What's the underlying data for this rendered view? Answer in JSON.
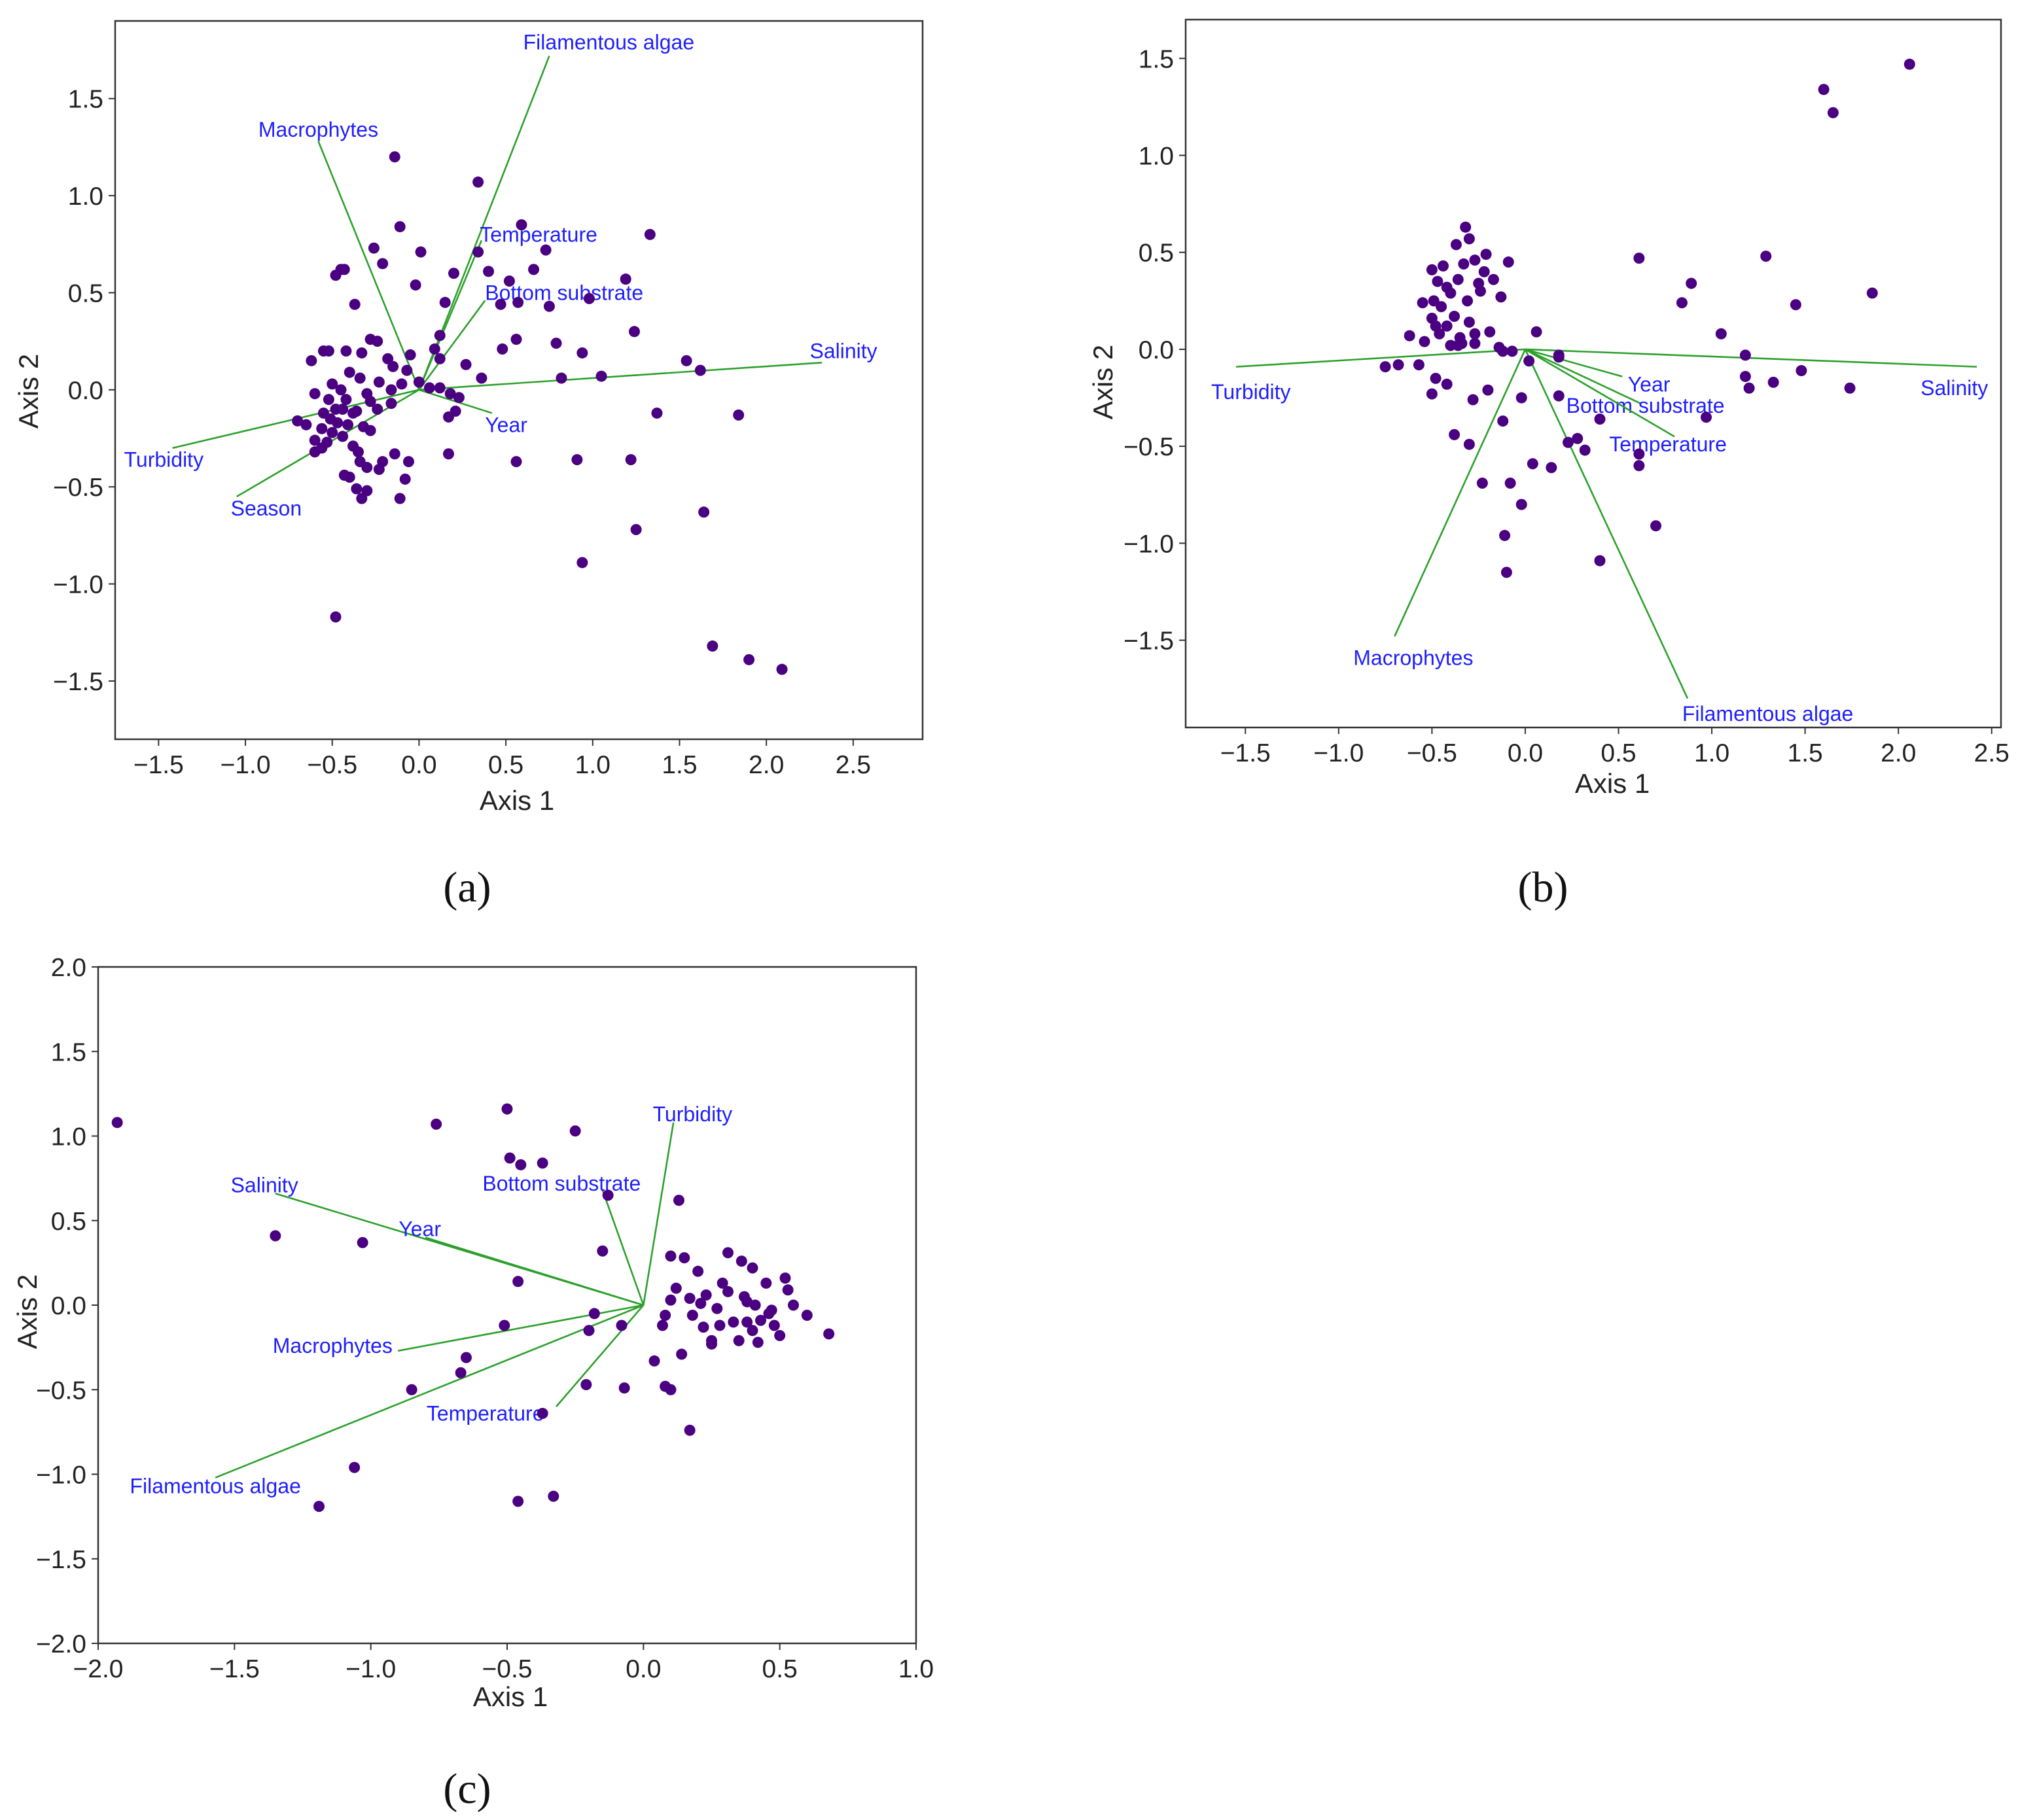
{
  "colors": {
    "points": "#4b0082",
    "vectors": "#2ca02c",
    "vector_labels": "#1f1fff",
    "frame": "#333333"
  },
  "chart_data": [
    {
      "panel": "(a)",
      "type": "scatter",
      "xlabel": "Axis 1",
      "ylabel": "Axis 2",
      "xlim": [
        -1.75,
        2.9
      ],
      "ylim": [
        -1.8,
        1.9
      ],
      "xticks": [
        -1.5,
        -1.0,
        -0.5,
        0.0,
        0.5,
        1.0,
        1.5,
        2.0,
        2.5
      ],
      "yticks": [
        -1.5,
        -1.0,
        -0.5,
        0.0,
        0.5,
        1.0,
        1.5
      ],
      "xtick_labels": [
        "−1.5",
        "−1.0",
        "−0.5",
        "0.0",
        "0.5",
        "1.0",
        "1.5",
        "2.0",
        "2.5"
      ],
      "ytick_labels": [
        "−1.5",
        "−1.0",
        "−0.5",
        "0.0",
        "0.5",
        "1.0",
        "1.5"
      ],
      "grid": false,
      "vectors": [
        {
          "label": "Filamentous algae",
          "x": 0.75,
          "y": 1.72,
          "lx": 0.6,
          "ly": 1.79,
          "anchor": "start"
        },
        {
          "label": "Macrophytes",
          "x": -0.58,
          "y": 1.28,
          "lx": -0.58,
          "ly": 1.34,
          "anchor": "middle"
        },
        {
          "label": "Temperature",
          "x": 0.36,
          "y": 0.77,
          "lx": 0.35,
          "ly": 0.8,
          "anchor": "start"
        },
        {
          "label": "Bottom substrate",
          "x": 0.38,
          "y": 0.46,
          "lx": 0.38,
          "ly": 0.5,
          "anchor": "start"
        },
        {
          "label": "Salinity",
          "x": 2.32,
          "y": 0.14,
          "lx": 2.25,
          "ly": 0.2,
          "anchor": "start"
        },
        {
          "label": "Year",
          "x": 0.42,
          "y": -0.12,
          "lx": 0.38,
          "ly": -0.18,
          "anchor": "start"
        },
        {
          "label": "Turbidity",
          "x": -1.42,
          "y": -0.3,
          "lx": -1.47,
          "ly": -0.36,
          "anchor": "middle"
        },
        {
          "label": "Season",
          "x": -1.05,
          "y": -0.55,
          "lx": -0.88,
          "ly": -0.61,
          "anchor": "middle"
        }
      ],
      "x": [
        -0.14,
        0.34,
        0.59,
        -0.11,
        0.34,
        0.73,
        0.66,
        1.33,
        -0.43,
        0.01,
        0.2,
        0.4,
        -0.26,
        -0.45,
        -0.48,
        -0.21,
        0.52,
        -0.02,
        0.47,
        0.57,
        1.19,
        0.98,
        0.15,
        0.75,
        -0.37,
        0.12,
        0.48,
        0.79,
        -0.24,
        -0.52,
        -0.28,
        -0.05,
        0.56,
        1.24,
        0.09,
        -0.55,
        -0.42,
        -0.33,
        0.94,
        -0.18,
        0.12,
        -0.62,
        -0.07,
        -0.15,
        0.27,
        0.36,
        0.82,
        1.05,
        1.62,
        1.54,
        -0.4,
        -0.5,
        -0.34,
        -0.23,
        -0.1,
        0.06,
        0.18,
        -0.45,
        -0.3,
        -0.16,
        0.0,
        0.12,
        -0.6,
        -0.42,
        -0.52,
        -0.28,
        -0.36,
        -0.48,
        -0.16,
        0.23,
        -0.7,
        -0.55,
        -0.44,
        -0.38,
        -0.51,
        -0.24,
        0.21,
        0.17,
        1.37,
        1.84,
        -0.65,
        -0.47,
        -0.56,
        -0.41,
        -0.32,
        -0.5,
        -0.6,
        -0.28,
        -0.44,
        -0.53,
        -0.56,
        -0.38,
        -0.35,
        -0.6,
        -0.14,
        -0.06,
        0.17,
        0.56,
        0.91,
        1.22,
        -0.34,
        -0.3,
        -0.23,
        -0.4,
        -0.43,
        -0.36,
        -0.08,
        -0.3,
        -0.11,
        1.25,
        1.64,
        0.94,
        -0.48,
        1.69,
        1.9,
        2.09,
        -0.33,
        -0.21
      ],
      "y": [
        1.2,
        1.07,
        0.85,
        0.84,
        0.71,
        0.72,
        0.62,
        0.8,
        0.62,
        0.71,
        0.6,
        0.61,
        0.73,
        0.62,
        0.59,
        0.65,
        0.56,
        0.54,
        0.44,
        0.45,
        0.57,
        0.47,
        0.45,
        0.43,
        0.44,
        0.28,
        0.21,
        0.24,
        0.25,
        0.2,
        0.26,
        0.18,
        0.26,
        0.3,
        0.21,
        0.2,
        0.2,
        0.19,
        0.19,
        0.16,
        0.16,
        0.15,
        0.1,
        0.12,
        0.13,
        0.06,
        0.06,
        0.07,
        0.1,
        0.15,
        0.09,
        0.03,
        0.06,
        0.04,
        0.03,
        0.01,
        -0.02,
        0.0,
        -0.02,
        0.0,
        0.04,
        0.01,
        -0.02,
        -0.05,
        -0.05,
        -0.06,
        -0.11,
        -0.1,
        -0.07,
        -0.04,
        -0.16,
        -0.12,
        -0.1,
        -0.12,
        -0.15,
        -0.1,
        -0.11,
        -0.14,
        -0.12,
        -0.13,
        -0.18,
        -0.17,
        -0.2,
        -0.18,
        -0.19,
        -0.22,
        -0.26,
        -0.21,
        -0.24,
        -0.27,
        -0.3,
        -0.29,
        -0.32,
        -0.32,
        -0.33,
        -0.37,
        -0.33,
        -0.37,
        -0.36,
        -0.36,
        -0.37,
        -0.4,
        -0.41,
        -0.45,
        -0.44,
        -0.51,
        -0.46,
        -0.52,
        -0.56,
        -0.72,
        -0.63,
        -0.89,
        -1.17,
        -1.32,
        -1.39,
        -1.44,
        -0.56,
        -0.37
      ]
    },
    {
      "panel": "(b)",
      "type": "scatter",
      "xlabel": "Axis 1",
      "ylabel": "Axis 2",
      "xlim": [
        -1.82,
        2.55
      ],
      "ylim": [
        -1.95,
        1.7
      ],
      "xticks": [
        -1.5,
        -1.0,
        -0.5,
        0.0,
        0.5,
        1.0,
        1.5,
        2.0,
        2.5
      ],
      "yticks": [
        -1.5,
        -1.0,
        -0.5,
        0.0,
        0.5,
        1.0,
        1.5
      ],
      "xtick_labels": [
        "−1.5",
        "−1.0",
        "−0.5",
        "0.0",
        "0.5",
        "1.0",
        "1.5",
        "2.0",
        "2.5"
      ],
      "ytick_labels": [
        "−1.5",
        "−1.0",
        "−0.5",
        "0.0",
        "0.5",
        "1.0",
        "1.5"
      ],
      "grid": false,
      "vectors": [
        {
          "label": "Turbidity",
          "x": -1.55,
          "y": -0.09,
          "lx": -1.47,
          "ly": -0.22,
          "anchor": "middle"
        },
        {
          "label": "Salinity",
          "x": 2.42,
          "y": -0.09,
          "lx": 2.3,
          "ly": -0.2,
          "anchor": "middle"
        },
        {
          "label": "Year",
          "x": 0.52,
          "y": -0.14,
          "lx": 0.55,
          "ly": -0.18,
          "anchor": "start"
        },
        {
          "label": "Bottom substrate",
          "x": 0.62,
          "y": -0.28,
          "lx": 0.22,
          "ly": -0.29,
          "anchor": "start"
        },
        {
          "label": "Temperature",
          "x": 0.8,
          "y": -0.45,
          "lx": 0.45,
          "ly": -0.49,
          "anchor": "start"
        },
        {
          "label": "Macrophytes",
          "x": -0.7,
          "y": -1.48,
          "lx": -0.6,
          "ly": -1.59,
          "anchor": "middle"
        },
        {
          "label": "Filamentous algae",
          "x": 0.87,
          "y": -1.8,
          "lx": 1.3,
          "ly": -1.88,
          "anchor": "middle"
        }
      ],
      "x": [
        2.06,
        1.6,
        1.65,
        -0.32,
        -0.37,
        -0.3,
        -0.21,
        -0.27,
        -0.5,
        -0.44,
        -0.33,
        -0.22,
        -0.09,
        0.61,
        1.29,
        -0.17,
        -0.36,
        -0.47,
        -0.25,
        -0.42,
        -0.4,
        -0.49,
        -0.31,
        -0.24,
        -0.13,
        0.89,
        1.45,
        1.86,
        -0.55,
        -0.45,
        -0.38,
        -0.5,
        0.84,
        0.06,
        -0.48,
        -0.42,
        -0.3,
        -0.19,
        -0.46,
        -0.35,
        -0.27,
        -0.62,
        -0.54,
        -0.4,
        1.05,
        1.18,
        -0.68,
        -0.34,
        -0.27,
        -0.14,
        -0.07,
        0.18,
        -0.75,
        -0.36,
        -0.12,
        0.02,
        -0.57,
        -0.48,
        0.18,
        1.18,
        1.48,
        1.2,
        1.33,
        1.74,
        -0.42,
        -0.5,
        -0.2,
        -0.28,
        -0.02,
        0.18,
        -0.12,
        0.4,
        0.97,
        -0.38,
        -0.3,
        0.28,
        0.23,
        0.61,
        0.04,
        0.32,
        0.14,
        0.61,
        -0.23,
        -0.08,
        -0.02,
        0.7,
        -0.11,
        0.4,
        -0.1
      ],
      "y": [
        1.47,
        1.34,
        1.22,
        0.63,
        0.54,
        0.57,
        0.49,
        0.46,
        0.41,
        0.43,
        0.44,
        0.4,
        0.45,
        0.47,
        0.48,
        0.36,
        0.36,
        0.35,
        0.34,
        0.32,
        0.29,
        0.25,
        0.25,
        0.3,
        0.27,
        0.34,
        0.23,
        0.29,
        0.24,
        0.22,
        0.17,
        0.16,
        0.24,
        0.09,
        0.12,
        0.12,
        0.14,
        0.09,
        0.08,
        0.06,
        0.08,
        0.07,
        0.04,
        0.02,
        0.08,
        -0.03,
        -0.08,
        0.03,
        0.03,
        0.01,
        -0.01,
        -0.03,
        -0.09,
        0.02,
        -0.01,
        -0.06,
        -0.08,
        -0.15,
        -0.04,
        -0.14,
        -0.11,
        -0.2,
        -0.17,
        -0.2,
        -0.18,
        -0.23,
        -0.21,
        -0.26,
        -0.25,
        -0.24,
        -0.37,
        -0.36,
        -0.35,
        -0.44,
        -0.49,
        -0.46,
        -0.48,
        -0.54,
        -0.59,
        -0.52,
        -0.61,
        -0.6,
        -0.69,
        -0.69,
        -0.8,
        -0.91,
        -0.96,
        -1.09,
        -1.15
      ]
    },
    {
      "panel": "(c)",
      "type": "scatter",
      "xlabel": "Axis 1",
      "ylabel": "Axis 2",
      "xlim": [
        -2.0,
        1.0
      ],
      "ylim": [
        -2.0,
        2.0
      ],
      "xticks": [
        -2.0,
        -1.5,
        -1.0,
        -0.5,
        0.0,
        0.5,
        1.0
      ],
      "yticks": [
        -2.0,
        -1.5,
        -1.0,
        -0.5,
        0.0,
        0.5,
        1.0,
        1.5,
        2.0
      ],
      "xtick_labels": [
        "−2.0",
        "−1.5",
        "−1.0",
        "−0.5",
        "0.0",
        "0.5",
        "1.0"
      ],
      "ytick_labels": [
        "−2.0",
        "−1.5",
        "−1.0",
        "−0.5",
        "0.0",
        "0.5",
        "1.0",
        "1.5",
        "2.0"
      ],
      "grid": false,
      "vectors": [
        {
          "label": "Turbidity",
          "x": 0.11,
          "y": 1.08,
          "lx": 0.18,
          "ly": 1.13,
          "anchor": "middle"
        },
        {
          "label": "Bottom substrate",
          "x": -0.15,
          "y": 0.68,
          "lx": -0.3,
          "ly": 0.72,
          "anchor": "middle"
        },
        {
          "label": "Salinity",
          "x": -1.35,
          "y": 0.66,
          "lx": -1.39,
          "ly": 0.71,
          "anchor": "middle"
        },
        {
          "label": "Year",
          "x": -0.8,
          "y": 0.4,
          "lx": -0.82,
          "ly": 0.45,
          "anchor": "middle"
        },
        {
          "label": "Macrophytes",
          "x": -0.9,
          "y": -0.27,
          "lx": -1.14,
          "ly": -0.24,
          "anchor": "middle"
        },
        {
          "label": "Temperature",
          "x": -0.32,
          "y": -0.6,
          "lx": -0.58,
          "ly": -0.64,
          "anchor": "middle"
        },
        {
          "label": "Filamentous algae",
          "x": -1.57,
          "y": -1.02,
          "lx": -1.57,
          "ly": -1.07,
          "anchor": "middle"
        }
      ],
      "x": [
        -1.93,
        -0.76,
        -0.5,
        -0.25,
        -0.49,
        -0.45,
        -0.37,
        -0.13,
        -0.15,
        -1.35,
        -1.03,
        0.13,
        0.15,
        -0.46,
        0.31,
        0.1,
        -0.51,
        -0.2,
        -0.08,
        -0.18,
        0.07,
        -0.65,
        -0.67,
        -0.85,
        -0.37,
        0.2,
        0.36,
        0.45,
        0.52,
        0.55,
        0.6,
        0.68,
        0.46,
        0.48,
        0.38,
        0.4,
        0.23,
        0.27,
        0.1,
        0.12,
        -1.06,
        -1.19,
        -0.46,
        -0.33,
        0.17,
        0.08,
        0.1,
        -0.07,
        -0.21,
        0.04,
        0.14,
        0.35,
        0.25,
        0.33,
        0.42,
        0.5,
        0.29,
        0.37,
        0.21,
        0.18,
        0.08,
        0.28,
        0.22,
        0.31,
        0.43,
        0.17,
        0.4,
        0.47,
        0.53,
        0.25,
        0.41,
        0.38
      ],
      "y": [
        1.08,
        1.07,
        1.16,
        1.03,
        0.87,
        0.83,
        0.84,
        0.65,
        0.32,
        0.41,
        0.37,
        0.62,
        0.28,
        0.14,
        0.31,
        0.29,
        -0.12,
        -0.15,
        -0.12,
        -0.05,
        -0.12,
        -0.31,
        -0.4,
        -0.5,
        -0.64,
        0.2,
        0.26,
        0.13,
        0.16,
        0.0,
        -0.06,
        -0.17,
        -0.05,
        -0.12,
        0.02,
        -0.15,
        0.06,
        -0.02,
        0.03,
        0.1,
        -0.96,
        -1.19,
        -1.16,
        -1.13,
        -0.74,
        -0.48,
        -0.5,
        -0.49,
        -0.47,
        -0.33,
        -0.29,
        -0.21,
        -0.23,
        -0.1,
        -0.22,
        -0.18,
        0.13,
        0.05,
        0.01,
        -0.06,
        -0.06,
        -0.12,
        -0.13,
        0.08,
        -0.09,
        0.04,
        0.22,
        -0.03,
        0.09,
        -0.21,
        0.0,
        -0.1
      ]
    }
  ]
}
